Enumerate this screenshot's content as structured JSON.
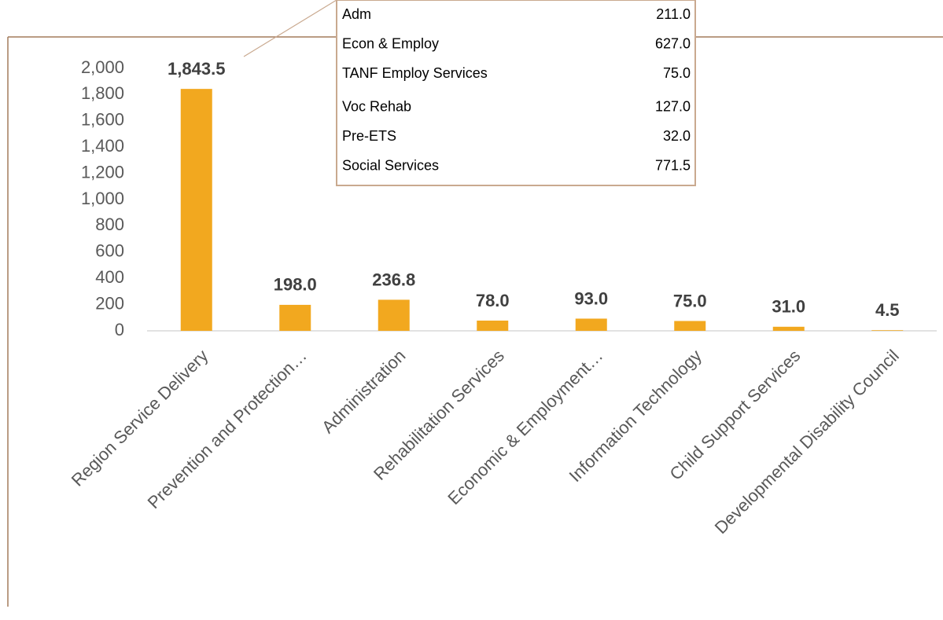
{
  "chart_data": {
    "type": "bar",
    "categories": [
      "Region Service Delivery",
      "Prevention and Protection…",
      "Administration",
      "Rehabilitation Services",
      "Economic & Employment…",
      "Information Technology",
      "Child Support Services",
      "Developmental Disability Council"
    ],
    "values": [
      1843.5,
      198.0,
      236.8,
      78.0,
      93.0,
      75.0,
      31.0,
      4.5
    ],
    "value_labels": [
      "1,843.5",
      "198.0",
      "236.8",
      "78.0",
      "93.0",
      "75.0",
      "31.0",
      "4.5"
    ],
    "color": "#f2a81f",
    "ylim": [
      0,
      2000
    ],
    "yticks": [
      0,
      200,
      400,
      600,
      800,
      {
        "value": 1000,
        "label": "1,000"
      },
      {
        "value": 1200,
        "label": "1,200"
      },
      {
        "value": 1400,
        "label": "1,400"
      },
      {
        "value": 1600,
        "label": "1,600"
      },
      {
        "value": 1800,
        "label": "1,800"
      },
      {
        "value": 2000,
        "label": "2,000"
      }
    ],
    "grid": false,
    "callout": {
      "rows": [
        [
          "Adm",
          "211.0"
        ],
        [
          "Econ & Employ",
          "627.0"
        ],
        [
          "TANF Employ Services",
          "75.0"
        ],
        [
          "Voc Rehab",
          "127.0"
        ],
        [
          "Pre-ETS",
          "32.0"
        ],
        [
          "Social Services",
          "771.5"
        ]
      ]
    }
  }
}
